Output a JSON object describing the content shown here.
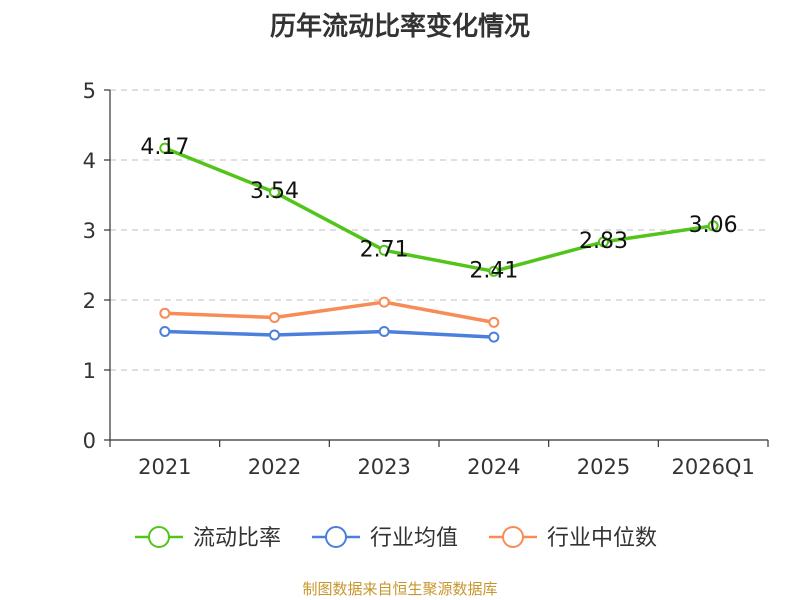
{
  "chart_data": {
    "type": "line",
    "title": "历年流动比率变化情况",
    "categories": [
      "2021",
      "2022",
      "2023",
      "2024",
      "2025",
      "2026Q1"
    ],
    "ylim": [
      0,
      5
    ],
    "yticks": [
      "0",
      "1",
      "2",
      "3",
      "4",
      "5"
    ],
    "xlabel": "",
    "ylabel": "",
    "grid": "horizontal dashed",
    "legend_position": "bottom",
    "series": [
      {
        "name": "流动比率",
        "color": "#52c41a",
        "values": [
          4.17,
          3.54,
          2.71,
          2.41,
          2.83,
          3.06
        ],
        "labels": [
          "4.17",
          "3.54",
          "2.71",
          "2.41",
          "2.83",
          "3.06"
        ]
      },
      {
        "name": "行业均值",
        "color": "#4a7fdc",
        "values": [
          1.55,
          1.5,
          1.55,
          1.47,
          null,
          null
        ]
      },
      {
        "name": "行业中位数",
        "color": "#f78c56",
        "values": [
          1.81,
          1.75,
          1.97,
          1.68,
          null,
          null
        ]
      }
    ]
  },
  "footer": {
    "source": "制图数据来自恒生聚源数据库"
  }
}
